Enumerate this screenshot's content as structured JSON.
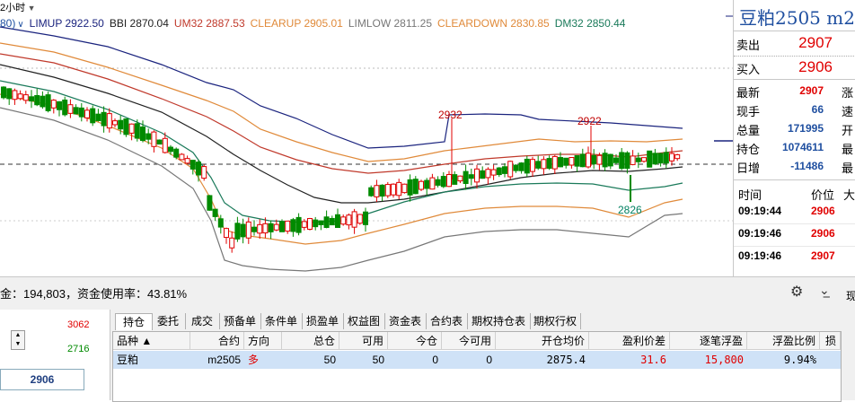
{
  "chart": {
    "period_label": "2小时",
    "legend": [
      {
        "text": "LIMUP",
        "value": "2922.50",
        "color": "#1a237e"
      },
      {
        "text": "BBI",
        "value": "2870.04",
        "color": "#222222"
      },
      {
        "text": "UM32",
        "value": "2887.53",
        "color": "#c0392b"
      },
      {
        "text": "CLEARUP",
        "value": "2905.01",
        "color": "#e08a3a"
      },
      {
        "text": "LIMLOW",
        "value": "2811.25",
        "color": "#777777"
      },
      {
        "text": "CLEARDOWN",
        "value": "2830.85",
        "color": "#e08a3a"
      },
      {
        "text": "DM32",
        "value": "2850.44",
        "color": "#1a7a5a"
      }
    ],
    "legend_prefix": "80)",
    "high_labels": [
      "2932",
      "2922"
    ],
    "low_label": "2826",
    "colors": {
      "up": "#e00000",
      "down": "#008a00",
      "limup": "#1a237e",
      "bbi": "#222222",
      "um": "#c0392b",
      "clear": "#e08a3a",
      "dm": "#1a7a5a",
      "limlow": "#777777"
    }
  },
  "quote": {
    "title": "豆粕2505  m2",
    "sell_label": "卖出",
    "sell_price": "2907",
    "buy_label": "买入",
    "buy_price": "2906",
    "stats": [
      {
        "label": "最新",
        "value": "2907",
        "color": "#e00000",
        "label2": "涨"
      },
      {
        "label": "现手",
        "value": "66",
        "color": "#1f4fa0",
        "label2": "速"
      },
      {
        "label": "总量",
        "value": "171995",
        "color": "#1f4fa0",
        "label2": "开"
      },
      {
        "label": "持仓",
        "value": "1074611",
        "color": "#1f4fa0",
        "label2": "最"
      },
      {
        "label": "日增",
        "value": "-11486",
        "color": "#1f4fa0",
        "label2": "最"
      }
    ],
    "ticks_header": {
      "time": "时间",
      "price": "价位",
      "more": "大"
    },
    "ticks": [
      {
        "time": "09:19:44",
        "price": "2906"
      },
      {
        "time": "09:19:46",
        "price": "2906"
      },
      {
        "time": "09:19:46",
        "price": "2907"
      }
    ]
  },
  "bottom": {
    "funds_text": "金：194,803，资金使用率：43.81%",
    "left_values": {
      "upper": "3062",
      "lower": "2716",
      "price": "2906"
    },
    "tabs": [
      "持仓",
      "委托",
      "成交",
      "预备单",
      "条件单",
      "损盈单",
      "权益图",
      "资金表",
      "合约表",
      "期权持仓表",
      "期权行权"
    ],
    "columns": [
      "品种 ▲",
      "合约",
      "方向",
      "总仓",
      "可用",
      "今仓",
      "今可用",
      "开仓均价",
      "盈利价差",
      "逐笔浮盈",
      "浮盈比例",
      "损"
    ],
    "row": [
      "豆粕",
      "m2505",
      "多",
      "50",
      "50",
      "0",
      "0",
      "2875.4",
      "31.6",
      "15,800",
      "9.94%",
      ""
    ],
    "side_label": "现"
  },
  "chart_data": {
    "type": "candlestick",
    "high_markers": [
      2932,
      2922
    ],
    "low_marker": 2826,
    "current_price": 2907
  }
}
